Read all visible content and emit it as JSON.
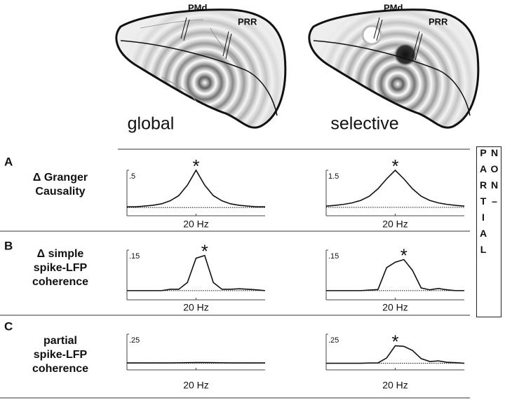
{
  "figure": {
    "brains": [
      {
        "caption": "global",
        "areas": [
          "PMd",
          "PRR"
        ]
      },
      {
        "caption": "selective",
        "areas": [
          "PMd",
          "PRR"
        ]
      }
    ],
    "panels": [
      {
        "letter": "A",
        "label": [
          "Δ Granger",
          "Causality"
        ]
      },
      {
        "letter": "B",
        "label": [
          "Δ simple",
          "spike-LFP",
          "coherence"
        ]
      },
      {
        "letter": "C",
        "label": [
          "partial",
          "spike-LFP",
          "coherence"
        ]
      }
    ],
    "side_label": "NON–PARTIAL"
  },
  "chart_data": [
    {
      "type": "line",
      "annotation": "*",
      "zero_line": true,
      "x": [
        0,
        2.5,
        5,
        7.5,
        10,
        12.5,
        15,
        17.5,
        20,
        22.5,
        25,
        27.5,
        30,
        32.5,
        35,
        37.5,
        40
      ],
      "xlim": [
        0,
        40
      ],
      "xticks": [
        {
          "value": 20,
          "label": "20 Hz"
        }
      ],
      "ylim": [
        -0.11,
        0.5
      ],
      "yticks": [
        {
          "value": 0.5,
          "label": ".5"
        }
      ],
      "series": [
        {
          "color": "#111111",
          "values": [
            0.01,
            0.01,
            0.02,
            0.03,
            0.05,
            0.09,
            0.16,
            0.3,
            0.5,
            0.3,
            0.16,
            0.09,
            0.05,
            0.03,
            0.02,
            0.01,
            0.01
          ]
        }
      ]
    },
    {
      "type": "line",
      "annotation": "*",
      "zero_line": true,
      "x": [
        0,
        2.5,
        5,
        7.5,
        10,
        12.5,
        15,
        17.5,
        20,
        22.5,
        25,
        27.5,
        30,
        32.5,
        35,
        37.5,
        40
      ],
      "xlim": [
        0,
        40
      ],
      "xticks": [
        {
          "value": 20,
          "label": "20 Hz"
        }
      ],
      "ylim": [
        -0.34,
        1.5
      ],
      "yticks": [
        {
          "value": 1.5,
          "label": "1.5"
        }
      ],
      "series": [
        {
          "color": "#111111",
          "values": [
            0.05,
            0.08,
            0.12,
            0.18,
            0.28,
            0.45,
            0.75,
            1.15,
            1.5,
            1.15,
            0.75,
            0.45,
            0.28,
            0.18,
            0.12,
            0.08,
            0.05
          ]
        }
      ]
    },
    {
      "type": "line",
      "annotation": "*",
      "zero_line": true,
      "x": [
        0,
        2.5,
        5,
        7.5,
        10,
        12.5,
        15,
        17.5,
        20,
        22.5,
        25,
        27.5,
        30,
        32.5,
        35,
        37.5,
        40
      ],
      "xlim": [
        0,
        40
      ],
      "xticks": [
        {
          "value": 20,
          "label": "20 Hz"
        }
      ],
      "ylim": [
        -0.034,
        0.15
      ],
      "yticks": [
        {
          "value": 0.15,
          "label": ".15"
        }
      ],
      "series": [
        {
          "color": "#111111",
          "values": [
            0,
            0,
            0,
            0,
            0,
            0.005,
            0.005,
            0.03,
            0.12,
            0.13,
            0.03,
            0.005,
            0.005,
            0.007,
            0.005,
            0.003,
            0
          ]
        }
      ]
    },
    {
      "type": "line",
      "annotation": "*",
      "zero_line": true,
      "x": [
        0,
        2.5,
        5,
        7.5,
        10,
        12.5,
        15,
        17.5,
        20,
        22.5,
        25,
        27.5,
        30,
        32.5,
        35,
        37.5,
        40
      ],
      "xlim": [
        0,
        40
      ],
      "xticks": [
        {
          "value": 20,
          "label": "20 Hz"
        }
      ],
      "ylim": [
        -0.034,
        0.15
      ],
      "yticks": [
        {
          "value": 0.15,
          "label": ".15"
        }
      ],
      "series": [
        {
          "color": "#111111",
          "values": [
            0,
            0,
            0,
            0,
            0,
            0.002,
            0.004,
            0.085,
            0.105,
            0.115,
            0.075,
            0.01,
            0.003,
            0.008,
            0.003,
            0,
            0
          ]
        }
      ]
    },
    {
      "type": "line",
      "zero_line": true,
      "x": [
        0,
        2.5,
        5,
        7.5,
        10,
        12.5,
        15,
        17.5,
        20,
        22.5,
        25,
        27.5,
        30,
        32.5,
        35,
        37.5,
        40
      ],
      "xlim": [
        0,
        40
      ],
      "xticks": [
        {
          "value": 20,
          "label": "20 Hz"
        }
      ],
      "ylim": [
        -0.057,
        0.25
      ],
      "yticks": [
        {
          "value": 0.25,
          "label": ".25"
        }
      ],
      "series": [
        {
          "color": "#111111",
          "values": [
            0.003,
            0.003,
            0.003,
            0.003,
            0.003,
            0.003,
            0.004,
            0.005,
            0.006,
            0.006,
            0.005,
            0.004,
            0.003,
            0.003,
            0.003,
            0.003,
            0.003
          ]
        }
      ]
    },
    {
      "type": "line",
      "annotation": "*",
      "zero_line": true,
      "x": [
        0,
        2.5,
        5,
        7.5,
        10,
        12.5,
        15,
        17.5,
        20,
        22.5,
        25,
        27.5,
        30,
        32.5,
        35,
        37.5,
        40
      ],
      "xlim": [
        0,
        40
      ],
      "xticks": [
        {
          "value": 20,
          "label": "20 Hz"
        }
      ],
      "ylim": [
        -0.057,
        0.25
      ],
      "yticks": [
        {
          "value": 0.25,
          "label": ".25"
        }
      ],
      "series": [
        {
          "color": "#111111",
          "values": [
            0,
            0,
            0,
            0,
            0,
            0.002,
            0.003,
            0.045,
            0.15,
            0.145,
            0.11,
            0.04,
            0.015,
            0.02,
            0.008,
            0.005,
            0
          ]
        }
      ]
    }
  ]
}
